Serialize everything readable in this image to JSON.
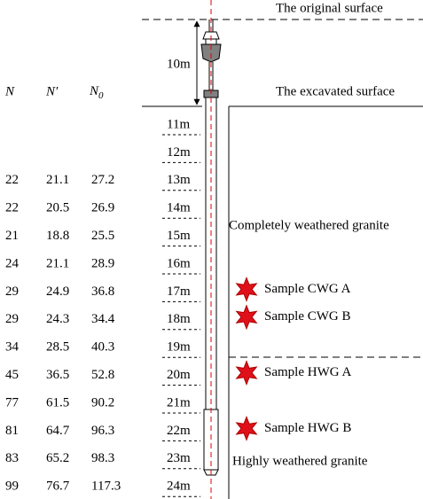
{
  "surfaces": {
    "original": "The original surface",
    "excavated": "The excavated surface"
  },
  "excavation_depth": "10m",
  "table": {
    "headers": [
      {
        "symbol": "N"
      },
      {
        "symbol": "N′"
      },
      {
        "symbol": "N",
        "subscript": "0"
      }
    ],
    "rows": [
      [
        "22",
        "21.1",
        "27.2"
      ],
      [
        "22",
        "20.5",
        "26.9"
      ],
      [
        "21",
        "18.8",
        "25.5"
      ],
      [
        "24",
        "21.1",
        "28.9"
      ],
      [
        "29",
        "24.9",
        "36.8"
      ],
      [
        "29",
        "24.3",
        "34.4"
      ],
      [
        "34",
        "28.5",
        "40.3"
      ],
      [
        "45",
        "36.5",
        "52.8"
      ],
      [
        "77",
        "61.5",
        "90.2"
      ],
      [
        "81",
        "64.7",
        "96.3"
      ],
      [
        "83",
        "65.2",
        "98.3"
      ],
      [
        "99",
        "76.7",
        "117.3"
      ]
    ]
  },
  "depth_labels": [
    "11m",
    "12m",
    "13m",
    "14m",
    "15m",
    "16m",
    "17m",
    "18m",
    "19m",
    "20m",
    "21m",
    "22m",
    "23m",
    "24m"
  ],
  "strata": {
    "completely": "Completely weathered granite",
    "highly": "Highly weathered granite"
  },
  "samples": [
    "Sample CWG A",
    "Sample CWG B",
    "Sample HWG A",
    "Sample HWG B"
  ]
}
